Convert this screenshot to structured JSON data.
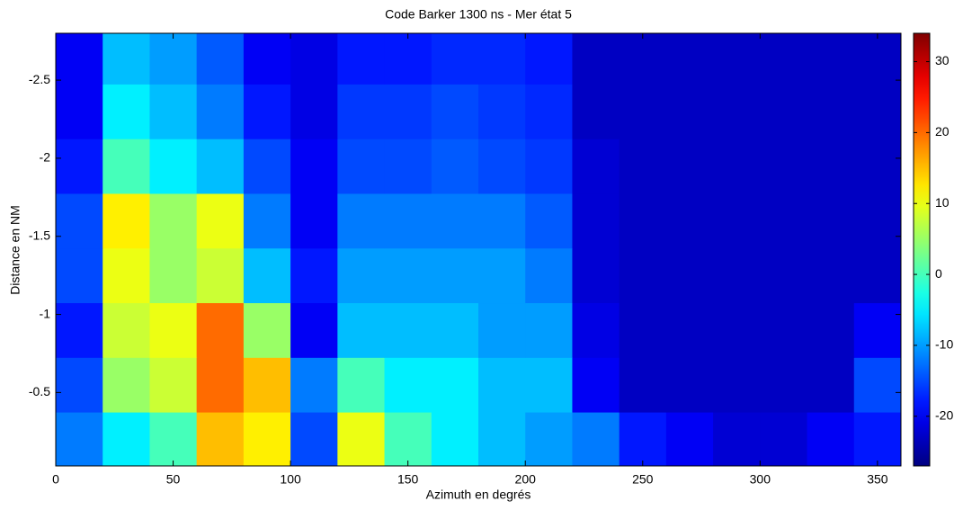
{
  "chart_data": {
    "type": "heatmap",
    "title": "Code Barker 1300 ns  - Mer état 5",
    "x_label": "Azimuth en degrés",
    "y_label": "Distance en NM",
    "x": [
      10,
      30,
      50,
      70,
      90,
      110,
      130,
      150,
      170,
      190,
      210,
      230,
      250,
      270,
      290,
      310,
      330,
      350
    ],
    "y": [
      -0.2,
      -0.55,
      -0.9,
      -1.25,
      -1.6,
      -1.95,
      -2.3,
      -2.65
    ],
    "z": [
      [
        -12,
        -5,
        0,
        15,
        12,
        -15,
        10,
        0,
        -5,
        -8,
        -10,
        -12,
        -18,
        -20,
        -22,
        -22,
        -20,
        -18
      ],
      [
        -15,
        5,
        8,
        20,
        15,
        -12,
        0,
        -5,
        -5,
        -8,
        -8,
        -20,
        -23,
        -23,
        -23,
        -23,
        -23,
        -15
      ],
      [
        -18,
        8,
        10,
        20,
        5,
        -20,
        -8,
        -8,
        -8,
        -10,
        -10,
        -21,
        -23,
        -23,
        -23,
        -23,
        -23,
        -20
      ],
      [
        -15,
        10,
        5,
        8,
        -8,
        -18,
        -10,
        -10,
        -10,
        -10,
        -12,
        -22,
        -23,
        -23,
        -23,
        -23,
        -23,
        -23
      ],
      [
        -15,
        12,
        5,
        10,
        -12,
        -20,
        -12,
        -12,
        -12,
        -12,
        -14,
        -22,
        -23,
        -23,
        -23,
        -23,
        -23,
        -23
      ],
      [
        -18,
        0,
        -5,
        -8,
        -15,
        -20,
        -15,
        -15,
        -14,
        -15,
        -16,
        -22,
        -23,
        -23,
        -23,
        -23,
        -23,
        -23
      ],
      [
        -20,
        -5,
        -8,
        -12,
        -18,
        -21,
        -16,
        -16,
        -15,
        -16,
        -17,
        -23,
        -23,
        -23,
        -23,
        -23,
        -23,
        -23
      ],
      [
        -20,
        -8,
        -10,
        -14,
        -20,
        -21,
        -18,
        -18,
        -17,
        -17,
        -18,
        -23,
        -23,
        -23,
        -23,
        -23,
        -23,
        -23
      ]
    ],
    "xlim": [
      0,
      360
    ],
    "xticks": [
      0,
      50,
      100,
      150,
      200,
      250,
      300,
      350
    ],
    "ylim": [
      -0.03,
      -2.8
    ],
    "yticks": [
      -2.5,
      -2,
      -1.5,
      -1,
      -0.5
    ],
    "clim": [
      -27,
      34
    ],
    "cticks": [
      -20,
      -10,
      0,
      10,
      20,
      30
    ],
    "colormap": "jet"
  }
}
